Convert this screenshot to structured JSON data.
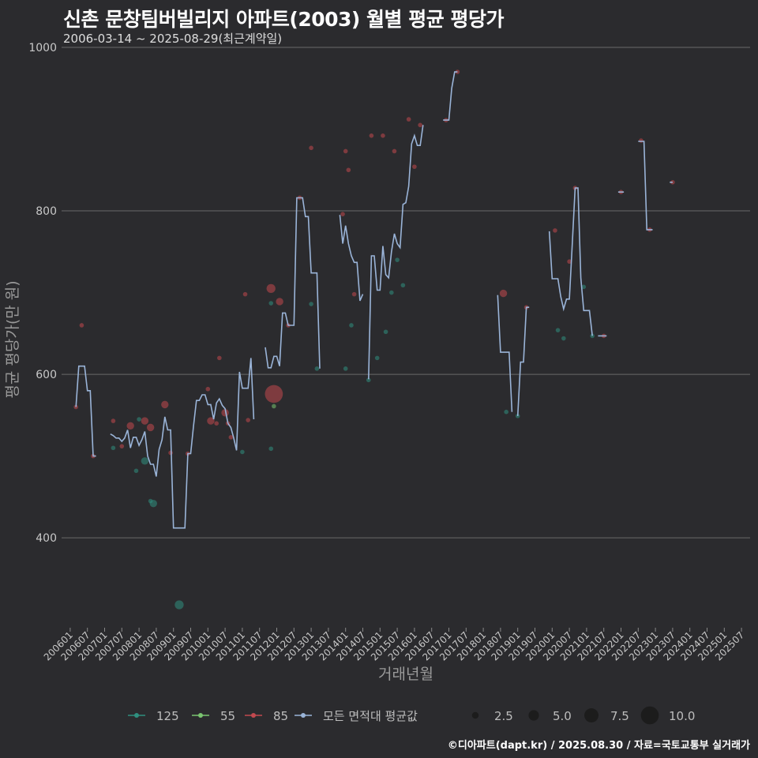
{
  "title": "신촌 문창팀버빌리지 아파트(2003) 월별 평균 평당가",
  "subtitle": "2006-03-14 ~ 2025-08-29(최근계약일)",
  "source": "©디아파트(dapt.kr) / 2025.08.30 / 자료=국토교통부 실거래가",
  "colors": {
    "background": "#2b2b2e",
    "grid": "#6a6a6a",
    "s125": "#2f8f7f",
    "s55": "#7ac470",
    "s85": "#c2494f",
    "avg": "#9ab4d8"
  },
  "chart_data": {
    "type": "line+scatter",
    "xlabel": "거래년월",
    "ylabel": "평균 평당가(만 원)",
    "ylim": [
      290,
      1000
    ],
    "yticks": [
      400,
      600,
      800,
      1000
    ],
    "x_range_months": [
      -3,
      237
    ],
    "x_ticks": [
      "200601",
      "200607",
      "200701",
      "200707",
      "200801",
      "200807",
      "200901",
      "200907",
      "201001",
      "201007",
      "201101",
      "201107",
      "201201",
      "201207",
      "201301",
      "201307",
      "201401",
      "201407",
      "201501",
      "201507",
      "201601",
      "201607",
      "201701",
      "201707",
      "201801",
      "201807",
      "201901",
      "201907",
      "202001",
      "202007",
      "202101",
      "202107",
      "202201",
      "202207",
      "202301",
      "202307",
      "202401",
      "202407",
      "202501",
      "202507"
    ],
    "x_note": "x values are months since 2006-01 (0 = 2006-01)",
    "legend_series": [
      {
        "name": "125",
        "key": "s125"
      },
      {
        "name": "55",
        "key": "s55"
      },
      {
        "name": "85",
        "key": "s85"
      },
      {
        "name": "모든 면적대 평균값",
        "key": "avg"
      }
    ],
    "size_legend": [
      {
        "label": "2.5",
        "value": 2.5
      },
      {
        "label": "5.0",
        "value": 5
      },
      {
        "label": "7.5",
        "value": 7.5
      },
      {
        "label": "10.0",
        "value": 10
      }
    ],
    "avg_line": [
      [
        [
          2,
          560
        ],
        [
          3,
          610
        ],
        [
          5,
          610
        ],
        [
          6,
          580
        ],
        [
          7,
          580
        ],
        [
          8,
          500
        ],
        [
          9,
          500
        ]
      ],
      [
        [
          14,
          527
        ],
        [
          15,
          525
        ],
        [
          16,
          522
        ],
        [
          17,
          522
        ],
        [
          18,
          518
        ],
        [
          19,
          522
        ],
        [
          20,
          532
        ],
        [
          21,
          510
        ],
        [
          22,
          523
        ],
        [
          23,
          523
        ],
        [
          24,
          513
        ],
        [
          25,
          520
        ],
        [
          26,
          530
        ],
        [
          27,
          500
        ],
        [
          28,
          490
        ],
        [
          29,
          490
        ],
        [
          30,
          475
        ],
        [
          31,
          508
        ],
        [
          32,
          520
        ],
        [
          33,
          548
        ],
        [
          34,
          532
        ],
        [
          35,
          532
        ],
        [
          36,
          412
        ],
        [
          40,
          412
        ],
        [
          41,
          503
        ],
        [
          42,
          503
        ],
        [
          43,
          537
        ],
        [
          44,
          568
        ],
        [
          45,
          568
        ],
        [
          46,
          575
        ],
        [
          47,
          575
        ],
        [
          48,
          563
        ],
        [
          49,
          563
        ],
        [
          50,
          545
        ],
        [
          51,
          565
        ],
        [
          52,
          570
        ],
        [
          53,
          562
        ],
        [
          54,
          558
        ],
        [
          55,
          540
        ],
        [
          56,
          535
        ],
        [
          57,
          522
        ],
        [
          58,
          507
        ],
        [
          59,
          603
        ],
        [
          60,
          583
        ],
        [
          61,
          583
        ],
        [
          62,
          583
        ],
        [
          63,
          620
        ],
        [
          64,
          545
        ]
      ],
      [
        [
          68,
          633
        ],
        [
          69,
          608
        ],
        [
          70,
          608
        ],
        [
          71,
          622
        ],
        [
          72,
          622
        ],
        [
          73,
          610
        ],
        [
          74,
          675
        ],
        [
          75,
          675
        ],
        [
          76,
          660
        ],
        [
          77,
          660
        ],
        [
          78,
          660
        ],
        [
          79,
          816
        ],
        [
          80,
          816
        ],
        [
          81,
          816
        ],
        [
          82,
          793
        ],
        [
          83,
          793
        ],
        [
          84,
          724
        ],
        [
          85,
          724
        ],
        [
          86,
          724
        ],
        [
          87,
          607
        ]
      ],
      [
        [
          94,
          795
        ],
        [
          95,
          760
        ],
        [
          96,
          782
        ],
        [
          97,
          760
        ],
        [
          98,
          745
        ],
        [
          99,
          737
        ],
        [
          100,
          737
        ],
        [
          101,
          690
        ],
        [
          102,
          698
        ]
      ],
      [
        [
          104,
          594
        ],
        [
          105,
          745
        ],
        [
          106,
          745
        ],
        [
          107,
          703
        ],
        [
          108,
          703
        ],
        [
          109,
          757
        ],
        [
          110,
          722
        ],
        [
          111,
          718
        ],
        [
          112,
          750
        ],
        [
          113,
          772
        ],
        [
          114,
          760
        ],
        [
          115,
          755
        ],
        [
          116,
          808
        ],
        [
          117,
          810
        ],
        [
          118,
          830
        ],
        [
          119,
          882
        ],
        [
          120,
          892
        ],
        [
          121,
          880
        ],
        [
          122,
          880
        ],
        [
          123,
          905
        ]
      ],
      [
        [
          130,
          911
        ],
        [
          131,
          911
        ],
        [
          132,
          911
        ],
        [
          133,
          950
        ],
        [
          134,
          970
        ],
        [
          135,
          970
        ]
      ],
      [
        [
          149,
          697
        ],
        [
          150,
          627
        ],
        [
          151,
          627
        ],
        [
          152,
          627
        ],
        [
          153,
          627
        ],
        [
          154,
          554
        ]
      ],
      [
        [
          156,
          549
        ],
        [
          157,
          615
        ],
        [
          158,
          615
        ],
        [
          159,
          682
        ],
        [
          160,
          682
        ]
      ],
      [
        [
          167,
          775
        ],
        [
          168,
          717
        ],
        [
          169,
          717
        ],
        [
          170,
          717
        ],
        [
          171,
          695
        ],
        [
          172,
          680
        ],
        [
          173,
          692
        ],
        [
          174,
          692
        ],
        [
          175,
          758
        ],
        [
          176,
          828
        ],
        [
          177,
          828
        ],
        [
          178,
          718
        ],
        [
          179,
          678
        ],
        [
          180,
          678
        ],
        [
          181,
          678
        ],
        [
          182,
          647
        ]
      ],
      [
        [
          184,
          647
        ],
        [
          185,
          647
        ],
        [
          186,
          647
        ],
        [
          187,
          647
        ]
      ],
      [
        [
          191,
          823
        ],
        [
          192,
          823
        ],
        [
          193,
          823
        ]
      ],
      [
        [
          198,
          885
        ],
        [
          199,
          885
        ],
        [
          200,
          885
        ],
        [
          201,
          777
        ],
        [
          202,
          777
        ],
        [
          203,
          777
        ]
      ],
      [
        [
          209,
          835
        ],
        [
          210,
          835
        ]
      ]
    ],
    "points": [
      {
        "s": "s85",
        "x": 2,
        "y": 560,
        "size": 1
      },
      {
        "s": "s85",
        "x": 4,
        "y": 660,
        "size": 1
      },
      {
        "s": "s85",
        "x": 8,
        "y": 500,
        "size": 1
      },
      {
        "s": "s125",
        "x": 15,
        "y": 510,
        "size": 1
      },
      {
        "s": "s85",
        "x": 15,
        "y": 543,
        "size": 1
      },
      {
        "s": "s85",
        "x": 18,
        "y": 512,
        "size": 1
      },
      {
        "s": "s85",
        "x": 21,
        "y": 537,
        "size": 3
      },
      {
        "s": "s125",
        "x": 23,
        "y": 482,
        "size": 1
      },
      {
        "s": "s125",
        "x": 24,
        "y": 545,
        "size": 1
      },
      {
        "s": "s85",
        "x": 26,
        "y": 543,
        "size": 3
      },
      {
        "s": "s125",
        "x": 26,
        "y": 494,
        "size": 3
      },
      {
        "s": "s85",
        "x": 28,
        "y": 535,
        "size": 3
      },
      {
        "s": "s125",
        "x": 28,
        "y": 445,
        "size": 1
      },
      {
        "s": "s125",
        "x": 29,
        "y": 442,
        "size": 3
      },
      {
        "s": "s85",
        "x": 33,
        "y": 563,
        "size": 3
      },
      {
        "s": "s85",
        "x": 35,
        "y": 504,
        "size": 1
      },
      {
        "s": "s125",
        "x": 38,
        "y": 318,
        "size": 4
      },
      {
        "s": "s85",
        "x": 41,
        "y": 503,
        "size": 1
      },
      {
        "s": "s85",
        "x": 48,
        "y": 582,
        "size": 1
      },
      {
        "s": "s85",
        "x": 49,
        "y": 543,
        "size": 3
      },
      {
        "s": "s85",
        "x": 51,
        "y": 540,
        "size": 1
      },
      {
        "s": "s85",
        "x": 52,
        "y": 620,
        "size": 1
      },
      {
        "s": "s85",
        "x": 54,
        "y": 553,
        "size": 3
      },
      {
        "s": "s85",
        "x": 55,
        "y": 540,
        "size": 1
      },
      {
        "s": "s85",
        "x": 56,
        "y": 523,
        "size": 1
      },
      {
        "s": "s125",
        "x": 60,
        "y": 505,
        "size": 1
      },
      {
        "s": "s85",
        "x": 61,
        "y": 698,
        "size": 1
      },
      {
        "s": "s85",
        "x": 62,
        "y": 544,
        "size": 1
      },
      {
        "s": "s85",
        "x": 70,
        "y": 705,
        "size": 4
      },
      {
        "s": "s125",
        "x": 70,
        "y": 687,
        "size": 1
      },
      {
        "s": "s85",
        "x": 71,
        "y": 576,
        "size": 10
      },
      {
        "s": "s125",
        "x": 70,
        "y": 509,
        "size": 1
      },
      {
        "s": "s55",
        "x": 71,
        "y": 561,
        "size": 1
      },
      {
        "s": "s85",
        "x": 73,
        "y": 689,
        "size": 3
      },
      {
        "s": "s85",
        "x": 76,
        "y": 660,
        "size": 1
      },
      {
        "s": "s85",
        "x": 80,
        "y": 816,
        "size": 1
      },
      {
        "s": "s85",
        "x": 84,
        "y": 877,
        "size": 1
      },
      {
        "s": "s125",
        "x": 84,
        "y": 686,
        "size": 1
      },
      {
        "s": "s125",
        "x": 86,
        "y": 607,
        "size": 1
      },
      {
        "s": "s85",
        "x": 95,
        "y": 796,
        "size": 1
      },
      {
        "s": "s85",
        "x": 96,
        "y": 873,
        "size": 1
      },
      {
        "s": "s85",
        "x": 97,
        "y": 850,
        "size": 1
      },
      {
        "s": "s125",
        "x": 96,
        "y": 607,
        "size": 1
      },
      {
        "s": "s125",
        "x": 98,
        "y": 660,
        "size": 1
      },
      {
        "s": "s85",
        "x": 99,
        "y": 698,
        "size": 1
      },
      {
        "s": "s125",
        "x": 104,
        "y": 593,
        "size": 1
      },
      {
        "s": "s85",
        "x": 105,
        "y": 892,
        "size": 1
      },
      {
        "s": "s125",
        "x": 107,
        "y": 620,
        "size": 1
      },
      {
        "s": "s85",
        "x": 109,
        "y": 892,
        "size": 1
      },
      {
        "s": "s125",
        "x": 110,
        "y": 652,
        "size": 1
      },
      {
        "s": "s125",
        "x": 112,
        "y": 700,
        "size": 1
      },
      {
        "s": "s85",
        "x": 113,
        "y": 873,
        "size": 1
      },
      {
        "s": "s125",
        "x": 114,
        "y": 740,
        "size": 1
      },
      {
        "s": "s125",
        "x": 116,
        "y": 709,
        "size": 1
      },
      {
        "s": "s85",
        "x": 118,
        "y": 912,
        "size": 1
      },
      {
        "s": "s85",
        "x": 120,
        "y": 854,
        "size": 1
      },
      {
        "s": "s85",
        "x": 122,
        "y": 905,
        "size": 1
      },
      {
        "s": "s85",
        "x": 131,
        "y": 911,
        "size": 1
      },
      {
        "s": "s85",
        "x": 135,
        "y": 970,
        "size": 1
      },
      {
        "s": "s85",
        "x": 151,
        "y": 699,
        "size": 3
      },
      {
        "s": "s125",
        "x": 152,
        "y": 554,
        "size": 1
      },
      {
        "s": "s125",
        "x": 156,
        "y": 549,
        "size": 1
      },
      {
        "s": "s85",
        "x": 159,
        "y": 682,
        "size": 1
      },
      {
        "s": "s85",
        "x": 169,
        "y": 776,
        "size": 1
      },
      {
        "s": "s125",
        "x": 170,
        "y": 654,
        "size": 1
      },
      {
        "s": "s125",
        "x": 172,
        "y": 644,
        "size": 1
      },
      {
        "s": "s85",
        "x": 174,
        "y": 738,
        "size": 1
      },
      {
        "s": "s85",
        "x": 176,
        "y": 828,
        "size": 1
      },
      {
        "s": "s125",
        "x": 179,
        "y": 707,
        "size": 1
      },
      {
        "s": "s125",
        "x": 182,
        "y": 647,
        "size": 1
      },
      {
        "s": "s85",
        "x": 186,
        "y": 647,
        "size": 1
      },
      {
        "s": "s85",
        "x": 192,
        "y": 823,
        "size": 1
      },
      {
        "s": "s85",
        "x": 199,
        "y": 886,
        "size": 1
      },
      {
        "s": "s85",
        "x": 202,
        "y": 777,
        "size": 1
      },
      {
        "s": "s85",
        "x": 210,
        "y": 835,
        "size": 1
      }
    ]
  }
}
